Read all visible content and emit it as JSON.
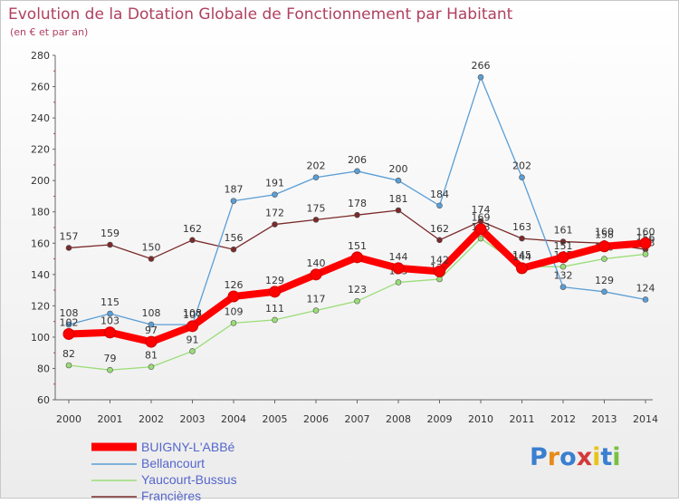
{
  "header": {
    "title": "Evolution de la Dotation Globale de Fonctionnement par Habitant",
    "subtitle": "(en € et par an)"
  },
  "chart_data": {
    "type": "line",
    "title": "Evolution de la Dotation Globale de Fonctionnement par Habitant",
    "subtitle": "(en € et par an)",
    "xlabel": "",
    "ylabel": "",
    "ylim": [
      60,
      280
    ],
    "yticks": [
      60,
      80,
      100,
      120,
      140,
      160,
      180,
      200,
      220,
      240,
      260,
      280
    ],
    "x": [
      "2000",
      "2001",
      "2002",
      "2003",
      "2004",
      "2005",
      "2006",
      "2007",
      "2008",
      "2009",
      "2010",
      "2011",
      "2012",
      "2013",
      "2014"
    ],
    "grid": false,
    "legend_position": "bottom-left",
    "series": [
      {
        "name": "Francières",
        "color": "#7a2a2a",
        "values": [
          157,
          159,
          150,
          162,
          156,
          172,
          175,
          178,
          181,
          162,
          174,
          163,
          161,
          160,
          156
        ]
      },
      {
        "name": "Yaucourt-Bussus",
        "color": "#99dd77",
        "values": [
          82,
          79,
          81,
          91,
          109,
          111,
          117,
          123,
          135,
          137,
          163,
          145,
          145,
          150,
          153
        ]
      },
      {
        "name": "Bellancourt",
        "color": "#5a9ed6",
        "values": [
          108,
          115,
          108,
          108,
          187,
          191,
          202,
          206,
          200,
          184,
          266,
          202,
          132,
          129,
          124
        ]
      },
      {
        "name": "BUIGNY-L'ABBé",
        "color": "#ff0000",
        "values": [
          102,
          103,
          97,
          107,
          126,
          129,
          140,
          151,
          144,
          142,
          169,
          144,
          151,
          158,
          160
        ]
      }
    ]
  },
  "legend": {
    "items": [
      {
        "label": "BUIGNY-L'ABBé",
        "color": "#ff0000"
      },
      {
        "label": "Bellancourt",
        "color": "#5a9ed6"
      },
      {
        "label": "Yaucourt-Bussus",
        "color": "#99dd77"
      },
      {
        "label": "Francières",
        "color": "#7a2a2a"
      }
    ]
  },
  "logo": {
    "letters": [
      "P",
      "r",
      "o",
      "x",
      "i",
      "t",
      "i"
    ],
    "colors": [
      "#3a7fd0",
      "#e88a1a",
      "#3a7fd0",
      "#d23a3a",
      "#e8c41a",
      "#3a7fd0",
      "#7ac040"
    ]
  }
}
